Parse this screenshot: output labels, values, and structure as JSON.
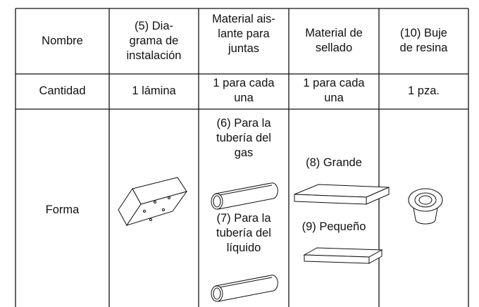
{
  "table": {
    "header": [
      "Nombre",
      "(5) Dia-\ngrama de\ninstalación",
      "Material ais-\nlante para\njuntas",
      "Material de\nsellado",
      "(10) Buje\nde resina"
    ],
    "quantity": [
      "Cantidad",
      "1 lámina",
      "1 para cada\nuna",
      "1 para cada\nuna",
      "1 pza."
    ],
    "shape": {
      "label": "Forma",
      "insulation": [
        "(6) Para la\ntubería del\ngas",
        "(7) Para la\ntubería del\nlíquido"
      ],
      "sealing": [
        "(8) Grande",
        "(9) Pequeño"
      ]
    }
  }
}
